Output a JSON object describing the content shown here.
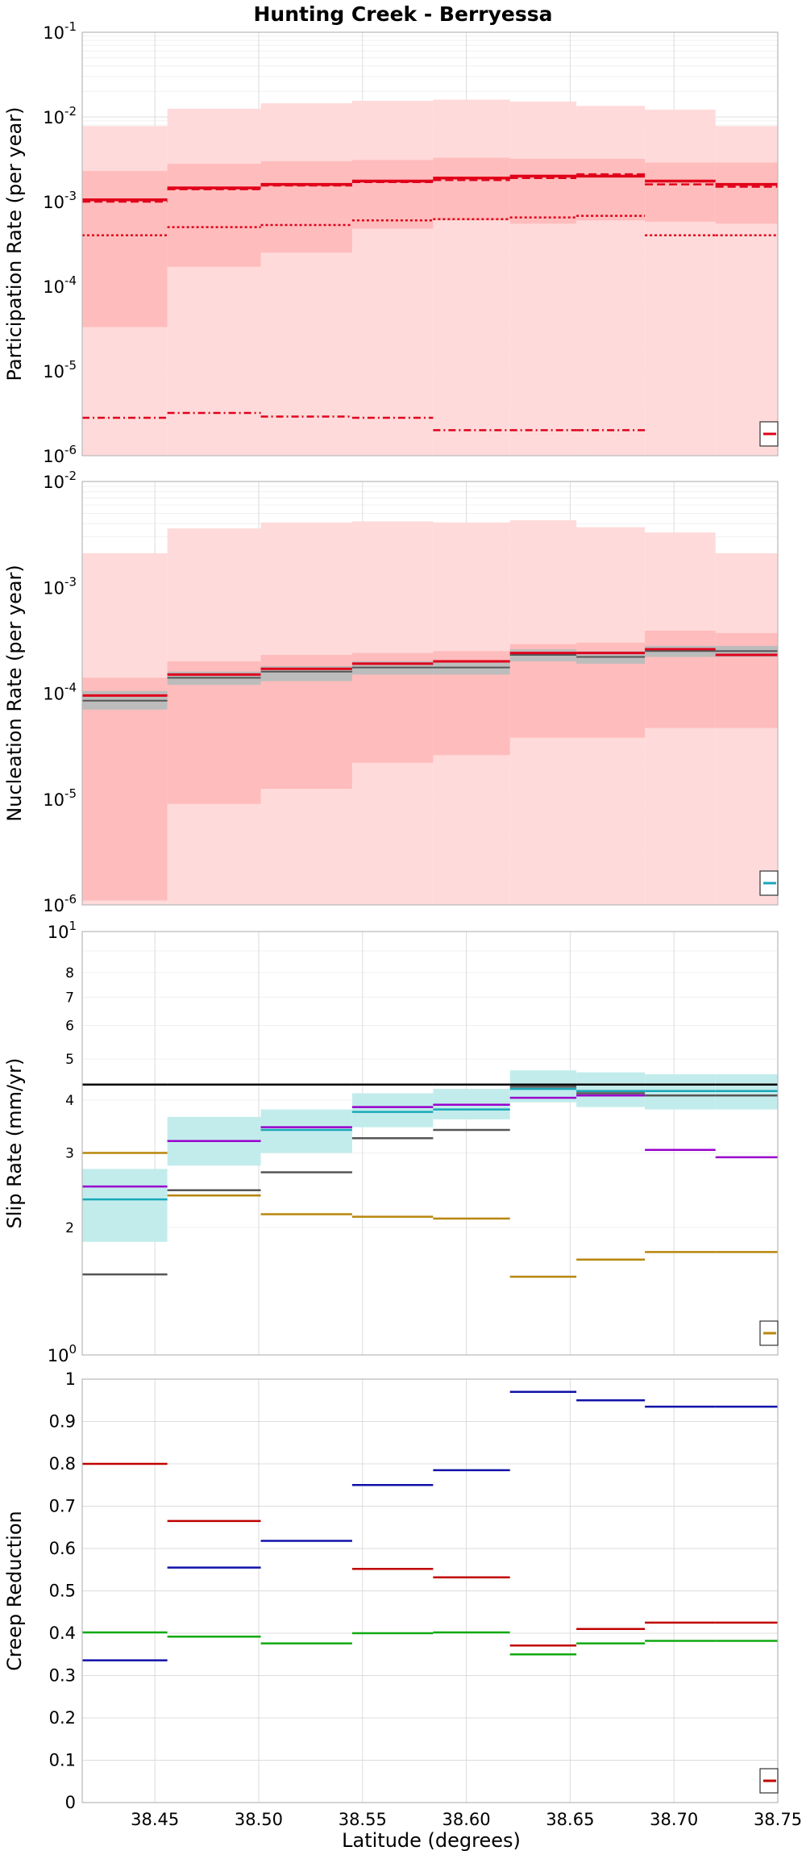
{
  "figure": {
    "title": "Hunting Creek - Berryessa",
    "xlabel": "Latitude (degrees)"
  },
  "chart_data": [
    {
      "type": "line",
      "panel": "participation",
      "ylabel": "Participation Rate (per year)",
      "yscale": "log",
      "ylim": [
        1e-06,
        0.1
      ],
      "xlim": [
        38.415,
        38.75
      ],
      "grid": true,
      "x_ticks": [
        38.45,
        38.5,
        38.55,
        38.6,
        38.65,
        38.7,
        38.75
      ],
      "y_ticks": [
        {
          "base": "10",
          "exp": "-6"
        },
        {
          "base": "10",
          "exp": "-5"
        },
        {
          "base": "10",
          "exp": "-4"
        },
        {
          "base": "10",
          "exp": "-3"
        },
        {
          "base": "10",
          "exp": "-2"
        },
        {
          "base": "10",
          "exp": "-1"
        }
      ],
      "y_tick_values": [
        1e-06,
        1e-05,
        0.0001,
        0.001,
        0.01,
        0.1
      ],
      "bin_edges": [
        38.415,
        38.456,
        38.501,
        38.545,
        38.584,
        38.621,
        38.653,
        38.686,
        38.72,
        38.75
      ],
      "bands": [
        {
          "color": "#ffdada",
          "lower": [
            1e-06,
            1e-06,
            1e-06,
            1e-06,
            1e-06,
            1e-06,
            1e-06,
            1e-06,
            1e-06
          ],
          "upper": [
            0.0078,
            0.0125,
            0.0145,
            0.0155,
            0.016,
            0.0152,
            0.0135,
            0.0122,
            0.0078
          ]
        },
        {
          "color": "#ffbcbc",
          "lower": [
            3.3e-05,
            0.00017,
            0.00025,
            0.00048,
            0.0006,
            0.00055,
            0.0006,
            0.00058,
            0.00055
          ],
          "upper": [
            0.0023,
            0.0028,
            0.003,
            0.0031,
            0.0033,
            0.0032,
            0.0032,
            0.0029,
            0.0029
          ]
        }
      ],
      "series": [
        {
          "color": "#e0001a",
          "dash": "",
          "width": 3.5,
          "values": [
            0.00105,
            0.00145,
            0.0016,
            0.00175,
            0.0019,
            0.002,
            0.002,
            0.00175,
            0.0016
          ]
        },
        {
          "color": "#e0001a",
          "dash": "10,5",
          "width": 2.5,
          "values": [
            0.001,
            0.0014,
            0.00155,
            0.0017,
            0.0018,
            0.0019,
            0.0021,
            0.0016,
            0.0015
          ]
        },
        {
          "color": "#e0001a",
          "dash": "3,3",
          "width": 2.5,
          "values": [
            0.0004,
            0.0005,
            0.00053,
            0.0006,
            0.00062,
            0.00065,
            0.00068,
            0.0004,
            0.0004
          ]
        },
        {
          "color": "#e0001a",
          "dash": "9,4,2,4",
          "width": 2.5,
          "values": [
            2.8e-06,
            3.2e-06,
            2.9e-06,
            2.8e-06,
            2e-06,
            2e-06,
            2e-06,
            null,
            null
          ]
        }
      ],
      "legend_color": "#e0001a"
    },
    {
      "type": "line",
      "panel": "nucleation",
      "ylabel": "Nucleation Rate (per year)",
      "yscale": "log",
      "ylim": [
        1e-06,
        0.01
      ],
      "xlim": [
        38.415,
        38.75
      ],
      "grid": true,
      "x_ticks": [
        38.45,
        38.5,
        38.55,
        38.6,
        38.65,
        38.7,
        38.75
      ],
      "y_ticks": [
        {
          "base": "10",
          "exp": "-6"
        },
        {
          "base": "10",
          "exp": "-5"
        },
        {
          "base": "10",
          "exp": "-4"
        },
        {
          "base": "10",
          "exp": "-3"
        },
        {
          "base": "10",
          "exp": "-2"
        }
      ],
      "y_tick_values": [
        1e-06,
        1e-05,
        0.0001,
        0.001,
        0.01
      ],
      "bin_edges": [
        38.415,
        38.456,
        38.501,
        38.545,
        38.584,
        38.621,
        38.653,
        38.686,
        38.72,
        38.75
      ],
      "bands": [
        {
          "color": "#ffdada",
          "lower": [
            1e-06,
            1e-06,
            1e-06,
            1e-06,
            1e-06,
            1e-06,
            1e-06,
            1e-06,
            1e-06
          ],
          "upper": [
            0.0021,
            0.0036,
            0.0041,
            0.0042,
            0.0041,
            0.0043,
            0.0037,
            0.0033,
            0.0021
          ]
        },
        {
          "color": "#ffbcbc",
          "lower": [
            1.1e-06,
            9e-06,
            1.25e-05,
            2.2e-05,
            2.6e-05,
            3.8e-05,
            3.8e-05,
            4.7e-05,
            4.7e-05
          ],
          "upper": [
            0.00014,
            0.0002,
            0.00023,
            0.00024,
            0.00025,
            0.00029,
            0.0003,
            0.00039,
            0.00037
          ]
        },
        {
          "color": "#bcbcbc",
          "lower": [
            7e-05,
            0.00012,
            0.00013,
            0.00015,
            0.00015,
            0.0002,
            0.00019,
            0.00022,
            0.00022
          ],
          "upper": [
            0.000105,
            0.00016,
            0.00018,
            0.0002,
            0.0002,
            0.00026,
            0.00025,
            0.00028,
            0.00028
          ]
        }
      ],
      "series": [
        {
          "color": "#e0001a",
          "dash": "",
          "width": 3,
          "values": [
            9.5e-05,
            0.00015,
            0.00017,
            0.00019,
            0.0002,
            0.00024,
            0.00024,
            0.00026,
            0.00023
          ]
        },
        {
          "color": "#555555",
          "dash": "",
          "width": 2,
          "values": [
            8.5e-05,
            0.00014,
            0.00016,
            0.000175,
            0.000175,
            0.00023,
            0.00022,
            0.00025,
            0.00025
          ]
        }
      ],
      "legend_color": "#1aa8b8"
    },
    {
      "type": "line",
      "panel": "slip",
      "ylabel": "Slip Rate (mm/yr)",
      "yscale": "log",
      "ylim": [
        1,
        10
      ],
      "xlim": [
        38.415,
        38.75
      ],
      "grid": true,
      "x_ticks": [
        38.45,
        38.5,
        38.55,
        38.6,
        38.65,
        38.7,
        38.75
      ],
      "y_ticks": [
        {
          "base": "10",
          "exp": "0"
        },
        {
          "base": "10",
          "exp": "1"
        }
      ],
      "y_tick_values": [
        1,
        10
      ],
      "y_minor_labels": [
        "2",
        "3",
        "4",
        "5",
        "6",
        "7",
        "8"
      ],
      "y_minor_values": [
        2,
        3,
        4,
        5,
        6,
        7,
        8
      ],
      "bin_edges": [
        38.415,
        38.456,
        38.501,
        38.545,
        38.584,
        38.621,
        38.653,
        38.686,
        38.72,
        38.75
      ],
      "bands": [
        {
          "color": "#c2ecec",
          "lower": [
            1.85,
            2.8,
            3.0,
            3.45,
            3.6,
            3.95,
            3.85,
            3.8,
            3.8
          ],
          "upper": [
            2.75,
            3.65,
            3.8,
            4.15,
            4.25,
            4.7,
            4.65,
            4.6,
            4.6
          ]
        }
      ],
      "series": [
        {
          "color": "#000000",
          "dash": "",
          "width": 2.5,
          "values": [
            4.35,
            4.35,
            4.35,
            4.35,
            4.35,
            4.35,
            4.35,
            4.35,
            4.35
          ]
        },
        {
          "color": "#1aa8b8",
          "dash": "",
          "width": 2.5,
          "values": [
            2.33,
            3.2,
            3.4,
            3.75,
            3.8,
            4.25,
            4.2,
            4.2,
            4.2
          ]
        },
        {
          "color": "#9900cc",
          "dash": "",
          "width": 2.5,
          "values": [
            2.5,
            3.2,
            3.45,
            3.85,
            3.9,
            4.05,
            4.1,
            3.05,
            2.93
          ]
        },
        {
          "color": "#555555",
          "dash": "",
          "width": 2.5,
          "values": [
            1.55,
            2.45,
            2.7,
            3.25,
            3.4,
            4.3,
            4.15,
            4.1,
            4.1
          ]
        },
        {
          "color": "#b8860b",
          "dash": "",
          "width": 2.5,
          "values": [
            3.0,
            2.38,
            2.15,
            2.12,
            2.1,
            1.53,
            1.68,
            1.75,
            1.75
          ]
        }
      ],
      "legend_color": "#b8860b"
    },
    {
      "type": "line",
      "panel": "creep",
      "ylabel": "Creep Reduction",
      "yscale": "linear",
      "ylim": [
        0,
        1
      ],
      "xlim": [
        38.415,
        38.75
      ],
      "grid": true,
      "x_ticks": [
        38.45,
        38.5,
        38.55,
        38.6,
        38.65,
        38.7,
        38.75
      ],
      "x_tick_labels": [
        "38.45",
        "38.50",
        "38.55",
        "38.60",
        "38.65",
        "38.70",
        "38.75"
      ],
      "y_ticks": [
        0,
        0.1,
        0.2,
        0.3,
        0.4,
        0.5,
        0.6,
        0.7,
        0.8,
        0.9,
        1
      ],
      "y_tick_labels": [
        "0",
        "0.1",
        "0.2",
        "0.3",
        "0.4",
        "0.5",
        "0.6",
        "0.7",
        "0.8",
        "0.9",
        "1"
      ],
      "bin_edges": [
        38.415,
        38.456,
        38.501,
        38.545,
        38.584,
        38.621,
        38.653,
        38.686,
        38.72,
        38.75
      ],
      "series": [
        {
          "color": "#c00000",
          "dash": "",
          "width": 2.5,
          "values": [
            0.8,
            0.665,
            null,
            0.552,
            0.532,
            0.371,
            0.41,
            0.425,
            0.425
          ]
        },
        {
          "color": "#1010aa",
          "dash": "",
          "width": 2.5,
          "values": [
            0.336,
            0.555,
            0.618,
            0.75,
            0.785,
            0.97,
            0.95,
            0.935,
            0.935
          ]
        },
        {
          "color": "#10aa10",
          "dash": "",
          "width": 2.5,
          "values": [
            0.402,
            0.392,
            0.376,
            0.4,
            0.402,
            0.35,
            0.376,
            0.382,
            0.382
          ]
        }
      ],
      "legend_color": "#c00000"
    }
  ]
}
